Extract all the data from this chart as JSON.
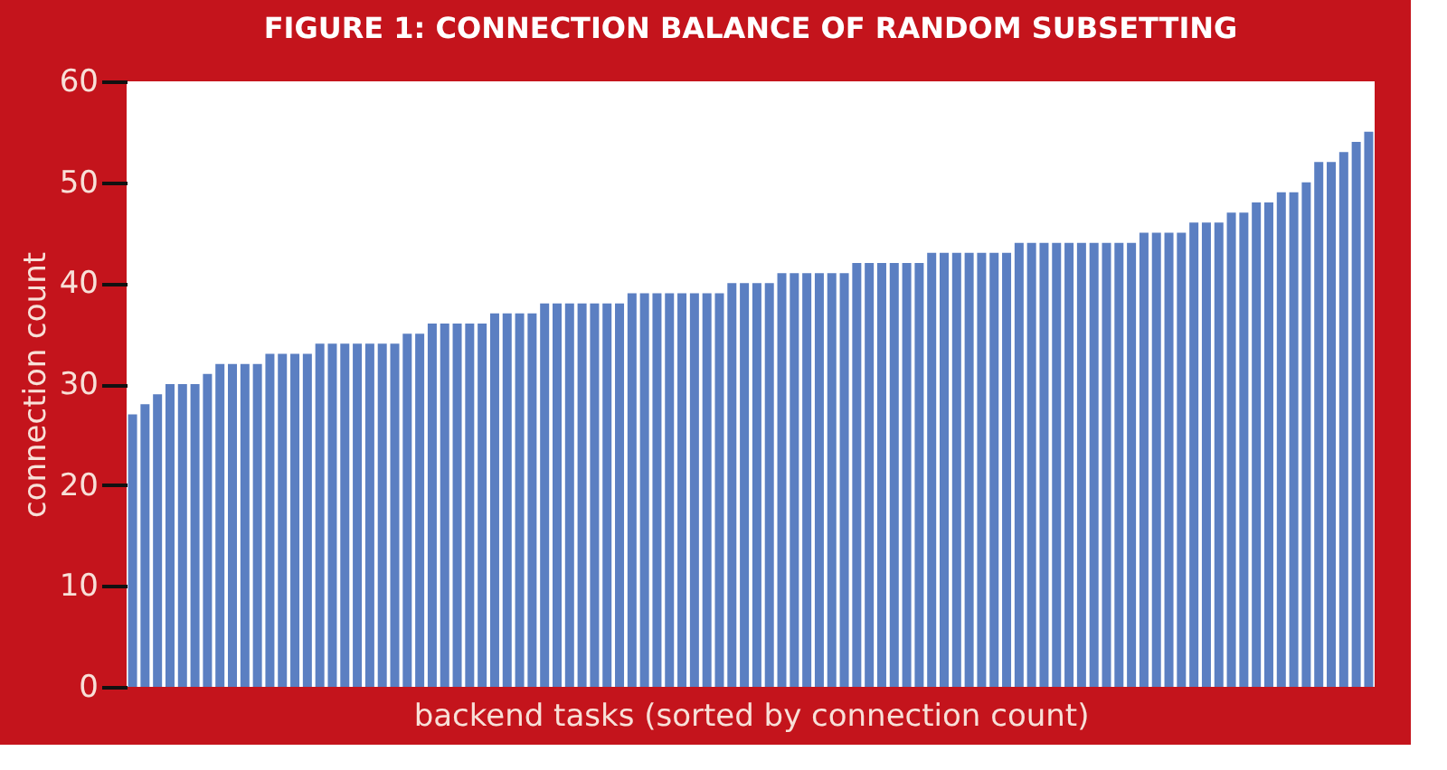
{
  "chart_data": {
    "type": "bar",
    "title": "FIGURE 1: CONNECTION BALANCE OF RANDOM SUBSETTING",
    "xlabel": "backend tasks (sorted by connection count)",
    "ylabel": "connection count",
    "categories": [
      null,
      null,
      null,
      null,
      null,
      null,
      null,
      null,
      null,
      null,
      null,
      null,
      null,
      null,
      null,
      null,
      null,
      null,
      null,
      null,
      null,
      null,
      null,
      null,
      null,
      null,
      null,
      null,
      null,
      null,
      null,
      null,
      null,
      null,
      null,
      null,
      null,
      null,
      null,
      null,
      null,
      null,
      null,
      null,
      null,
      null,
      null,
      null,
      null,
      null,
      null,
      null,
      null,
      null,
      null,
      null,
      null,
      null,
      null,
      null,
      null,
      null,
      null,
      null,
      null,
      null,
      null,
      null,
      null,
      null,
      null,
      null,
      null,
      null,
      null,
      null,
      null,
      null,
      null,
      null,
      null,
      null,
      null,
      null,
      null,
      null,
      null,
      null,
      null,
      null,
      null,
      null,
      null,
      null,
      null,
      null,
      null,
      null,
      null,
      null
    ],
    "values": [
      27,
      28,
      29,
      30,
      30,
      30,
      31,
      32,
      32,
      32,
      32,
      33,
      33,
      33,
      33,
      34,
      34,
      34,
      34,
      34,
      34,
      34,
      35,
      35,
      36,
      36,
      36,
      36,
      36,
      37,
      37,
      37,
      37,
      38,
      38,
      38,
      38,
      38,
      38,
      38,
      39,
      39,
      39,
      39,
      39,
      39,
      39,
      39,
      40,
      40,
      40,
      40,
      41,
      41,
      41,
      41,
      41,
      41,
      42,
      42,
      42,
      42,
      42,
      42,
      43,
      43,
      43,
      43,
      43,
      43,
      43,
      44,
      44,
      44,
      44,
      44,
      44,
      44,
      44,
      44,
      44,
      45,
      45,
      45,
      45,
      46,
      46,
      46,
      47,
      47,
      48,
      48,
      49,
      49,
      50,
      52,
      52,
      53,
      54,
      55
    ],
    "color": "#5b7fc2",
    "ylim": [
      0,
      60
    ],
    "yticks": [
      0,
      10,
      20,
      30,
      40,
      50,
      60
    ],
    "grid": false
  }
}
